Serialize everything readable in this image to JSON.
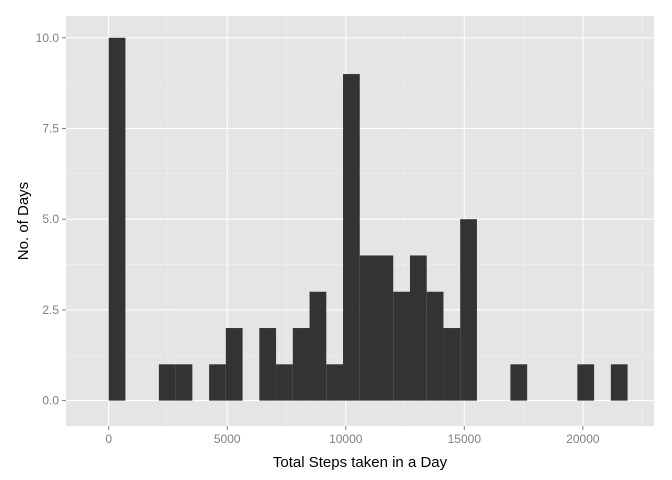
{
  "chart_data": {
    "type": "bar",
    "xlabel": "Total Steps taken in a Day",
    "ylabel": "No. of Days",
    "xlim": [
      -1800,
      23000
    ],
    "ylim": [
      -0.7,
      10.6
    ],
    "x_ticks": [
      0,
      5000,
      10000,
      15000,
      20000
    ],
    "x_tick_labels": [
      "0",
      "5000",
      "10000",
      "15000",
      "20000"
    ],
    "y_ticks": [
      0,
      2.5,
      5,
      7.5,
      10
    ],
    "y_tick_labels": [
      "0.0",
      "2.5",
      "5.0",
      "7.5",
      "10.0"
    ],
    "bin_width": 706,
    "bins": [
      {
        "x_start": 0,
        "count": 10
      },
      {
        "x_start": 2118,
        "count": 1
      },
      {
        "x_start": 2824,
        "count": 1
      },
      {
        "x_start": 4236,
        "count": 1
      },
      {
        "x_start": 4942,
        "count": 2
      },
      {
        "x_start": 6354,
        "count": 2
      },
      {
        "x_start": 7060,
        "count": 1
      },
      {
        "x_start": 7766,
        "count": 2
      },
      {
        "x_start": 8472,
        "count": 3
      },
      {
        "x_start": 9178,
        "count": 1
      },
      {
        "x_start": 9884,
        "count": 9
      },
      {
        "x_start": 10590,
        "count": 4
      },
      {
        "x_start": 11296,
        "count": 4
      },
      {
        "x_start": 12002,
        "count": 3
      },
      {
        "x_start": 12708,
        "count": 4
      },
      {
        "x_start": 13414,
        "count": 3
      },
      {
        "x_start": 14120,
        "count": 2
      },
      {
        "x_start": 14826,
        "count": 5
      },
      {
        "x_start": 16944,
        "count": 1
      },
      {
        "x_start": 19768,
        "count": 1
      },
      {
        "x_start": 21180,
        "count": 1
      }
    ],
    "grid": true,
    "colors": {
      "panel_background": "#e5e5e5",
      "grid_major": "#ffffff",
      "grid_minor": "#f2f2f2",
      "bar_fill": "#333333",
      "tick_text": "#7f7f7f",
      "axis_title": "#000000"
    }
  }
}
